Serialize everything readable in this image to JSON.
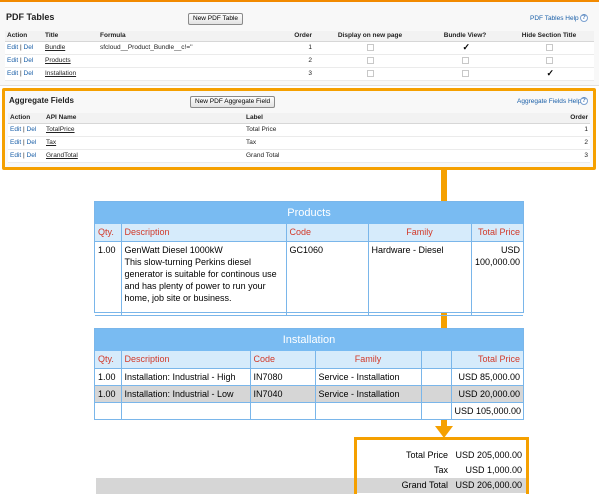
{
  "pdf_tables": {
    "title": "PDF Tables",
    "new_button": "New PDF Table",
    "help_link": "PDF Tables Help",
    "help_icon": "help-icon",
    "columns": [
      "Action",
      "Title",
      "Formula",
      "Order",
      "Display on new page",
      "Bundle View?",
      "Hide Section Title"
    ],
    "edit_label": "Edit",
    "sep": "|",
    "del_label": "Del",
    "rows": [
      {
        "title": "Bundle",
        "formula": "sfcloud__Product_Bundle__c!=''",
        "order": "1",
        "display_new_page": false,
        "bundle_view": true,
        "hide_title": false
      },
      {
        "title": "Products",
        "formula": "",
        "order": "2",
        "display_new_page": false,
        "bundle_view": false,
        "hide_title": false
      },
      {
        "title": "Installation",
        "formula": "",
        "order": "3",
        "display_new_page": false,
        "bundle_view": false,
        "hide_title": true
      }
    ]
  },
  "aggregate_fields": {
    "title": "Aggregate Fields",
    "new_button": "New PDF Aggregate Field",
    "help_link": "Aggregate Fields Help",
    "columns": [
      "Action",
      "API Name",
      "Label",
      "Order"
    ],
    "rows": [
      {
        "api_name": "TotalPrice",
        "label": "Total Price",
        "order": "1"
      },
      {
        "api_name": "Tax",
        "label": "Tax",
        "order": "2"
      },
      {
        "api_name": "GrandTotal",
        "label": "Grand Total",
        "order": "3"
      }
    ]
  },
  "products_table": {
    "title": "Products",
    "columns": [
      "Qty.",
      "Description",
      "Code",
      "Family",
      "Total Price"
    ],
    "rows": [
      {
        "qty": "1.00",
        "description": "GenWatt Diesel 1000kW",
        "description_detail": "This slow-turning Perkins diesel generator is suitable for continous use and has plenty of power to run your home, job site or business.",
        "code": "GC1060",
        "family": "Hardware - Diesel",
        "total_price": "USD 100,000.00"
      }
    ]
  },
  "installation_table": {
    "title": "Installation",
    "columns": [
      "Qty.",
      "Description",
      "Code",
      "Family",
      "Total Price"
    ],
    "rows": [
      {
        "qty": "1.00",
        "description": "Installation: Industrial - High",
        "code": "IN7080",
        "family": "Service - Installation",
        "total_price": "USD 85,000.00"
      },
      {
        "qty": "1.00",
        "description": "Installation: Industrial - Low",
        "code": "IN7040",
        "family": "Service - Installation",
        "total_price": "USD 20,000.00"
      }
    ],
    "subtotal": "USD 105,000.00"
  },
  "totals": {
    "total_price_label": "Total Price",
    "total_price_value": "USD 205,000.00",
    "tax_label": "Tax",
    "tax_value": "USD 1,000.00",
    "grand_total_label": "Grand Total",
    "grand_total_value": "USD 206,000.00"
  },
  "colors": {
    "accent_orange": "#f5a000",
    "header_blue": "#79bbf2",
    "column_header_red": "#d23a2a",
    "link_blue": "#1a5fa8"
  }
}
